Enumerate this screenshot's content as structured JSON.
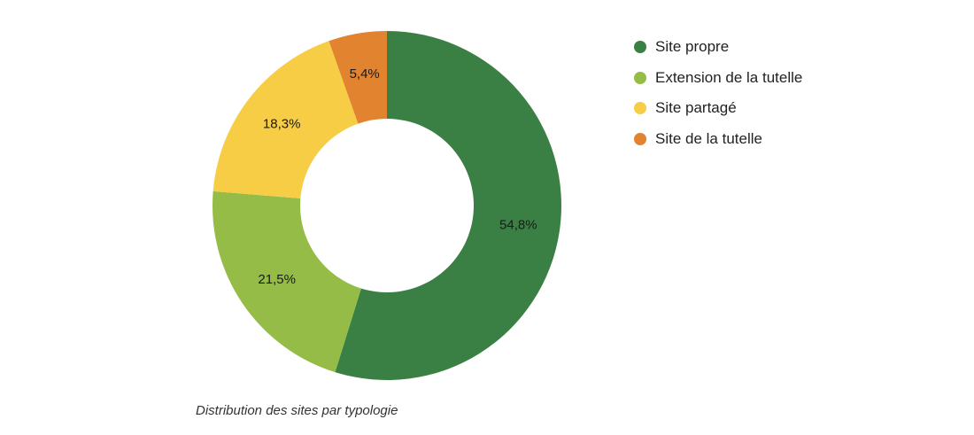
{
  "chart_data": {
    "type": "pie",
    "variant": "donut",
    "categories": [
      "Site propre",
      "Extension de la tutelle",
      "Site partagé",
      "Site de la tutelle"
    ],
    "values": [
      54.8,
      21.5,
      18.3,
      5.4
    ],
    "value_labels": [
      "54,8%",
      "21,5%",
      "18,3%",
      "5,4%"
    ],
    "colors": [
      "#3a8045",
      "#94bc46",
      "#f6cd45",
      "#e2832f"
    ],
    "legend_position": "right",
    "start_angle": "top",
    "direction": "clockwise"
  },
  "caption": "Distribution des sites par typologie"
}
